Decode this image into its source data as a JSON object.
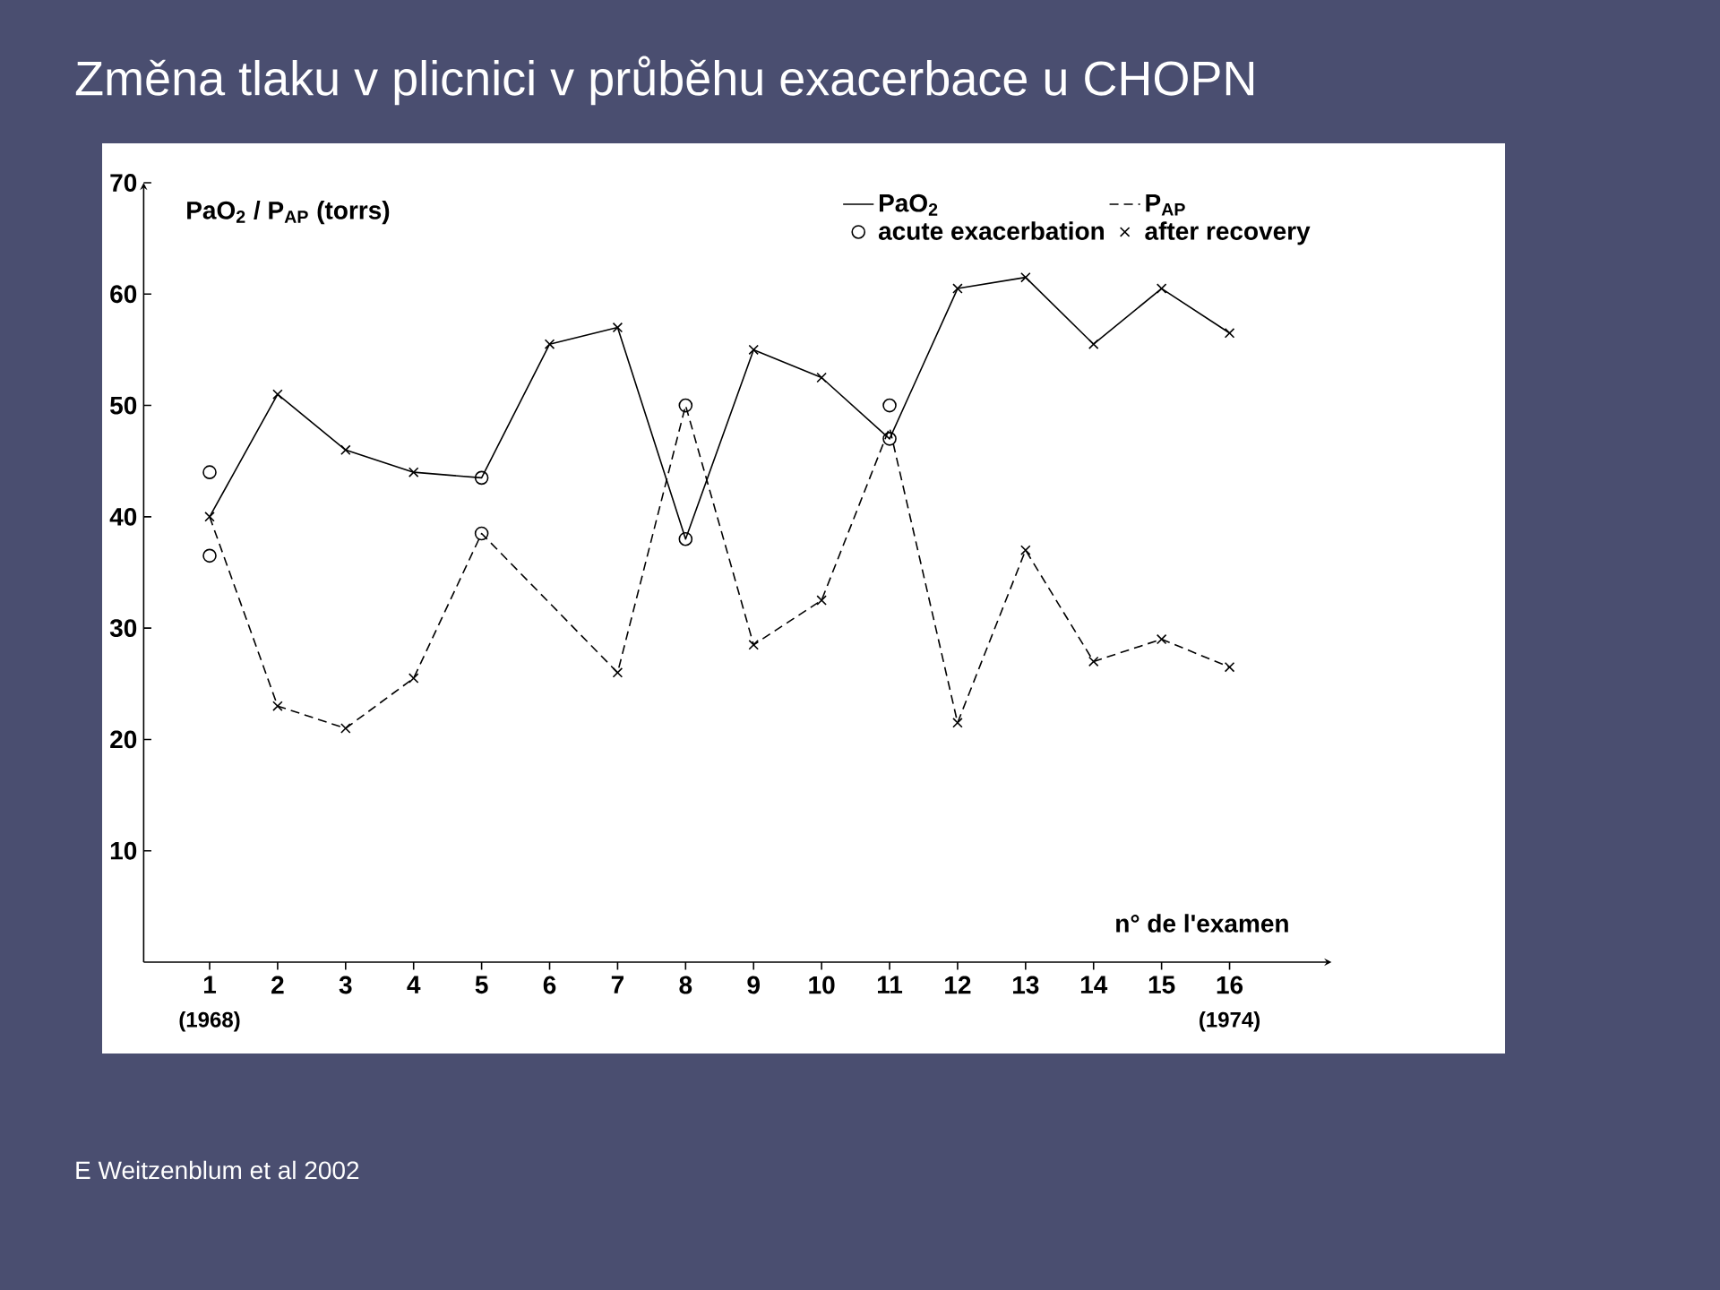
{
  "chart_data": {
    "type": "line",
    "title": "Změna tlaku v plicnici v průběhu exacerbace u CHOPN",
    "ylabel": "PaO$_{2}$ / P$_{AP}$ (torrs)",
    "xlabel": "n° de l'examen",
    "categories": [
      "1",
      "2",
      "3",
      "4",
      "5",
      "6",
      "7",
      "8",
      "9",
      "10",
      "11",
      "12",
      "13",
      "14",
      "15",
      "16"
    ],
    "ylim": [
      0,
      70
    ],
    "yticks": [
      10,
      20,
      30,
      40,
      50,
      60,
      70
    ],
    "series": [
      {
        "name": "PaO$_{2}$",
        "color": "#000000",
        "line_style": "solid",
        "marker": "none",
        "values": [
          40,
          51,
          46,
          44,
          43.5,
          55.5,
          57,
          38,
          55,
          52.5,
          47,
          60.5,
          61.5,
          55.5,
          60.5,
          56.5
        ]
      },
      {
        "name": "P$_{AP}$",
        "color": "#000000",
        "line_style": "dashed",
        "marker": "none",
        "values": [
          40,
          23,
          21,
          25.5,
          38.5,
          null,
          26,
          50,
          28.5,
          32.5,
          48,
          21.5,
          37,
          27,
          29,
          26.5
        ]
      },
      {
        "name": "acute exacerbation",
        "type": "scatter",
        "color": "#000000",
        "marker": "circle",
        "x": [
          "1",
          "1",
          "5",
          "5",
          "8",
          "8",
          "11",
          "11"
        ],
        "values": [
          44,
          36.5,
          43.5,
          38.5,
          38,
          50,
          50,
          47
        ]
      },
      {
        "name": "after recovery",
        "type": "scatter",
        "color": "#000000",
        "marker": "cross",
        "x": [
          "1",
          "2",
          "3",
          "4",
          "6",
          "7",
          "9",
          "10",
          "12",
          "13",
          "14",
          "15",
          "16",
          "2",
          "3",
          "4",
          "7",
          "9",
          "10",
          "12",
          "13",
          "14",
          "15",
          "16"
        ],
        "values": [
          40,
          51,
          46,
          44,
          55.5,
          57,
          55,
          52.5,
          60.5,
          61.5,
          55.5,
          60.5,
          56.5,
          23,
          21,
          25.5,
          26,
          28.5,
          32.5,
          21.5,
          37,
          27,
          29,
          26.5
        ]
      }
    ],
    "legend": "top right",
    "annotations": [
      "(1968)",
      "(1974)",
      "E Weitzenblum et al 2002"
    ]
  }
}
